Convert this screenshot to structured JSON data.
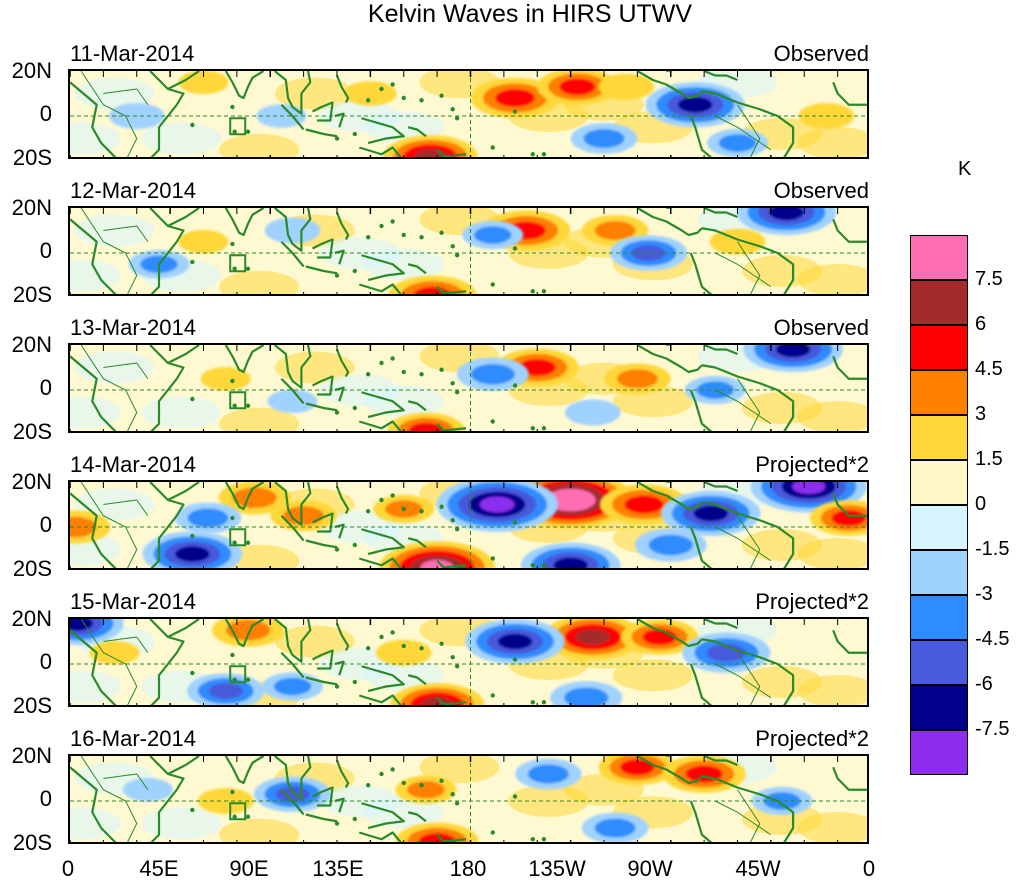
{
  "title": "Kelvin Waves in HIRS UTWV",
  "panels": [
    {
      "date": "11-Mar-2014",
      "type": "Observed"
    },
    {
      "date": "12-Mar-2014",
      "type": "Observed"
    },
    {
      "date": "13-Mar-2014",
      "type": "Observed"
    },
    {
      "date": "14-Mar-2014",
      "type": "Projected*2"
    },
    {
      "date": "15-Mar-2014",
      "type": "Projected*2"
    },
    {
      "date": "16-Mar-2014",
      "type": "Projected*2"
    }
  ],
  "lat_labels": [
    "20N",
    "0",
    "20S"
  ],
  "lon_labels": [
    "0",
    "45E",
    "90E",
    "135E",
    "180",
    "135W",
    "90W",
    "45W",
    "0"
  ],
  "colorbar": {
    "unit": "K",
    "labels": [
      "7.5",
      "6",
      "4.5",
      "3",
      "1.5",
      "0",
      "-1.5",
      "-3",
      "-4.5",
      "-6",
      "-7.5"
    ],
    "colors": [
      "#ff6eb4",
      "#a52a2a",
      "#ff0000",
      "#ff7f00",
      "#ffd739",
      "#fff9c8",
      "#d7f5ff",
      "#a0d2ff",
      "#2d8cff",
      "#465adc",
      "#00008b",
      "#8c2ded"
    ]
  },
  "colors": {
    "coast": "#2a8a2a",
    "zero_line": "#2a8a2a",
    "background": "#fff9d2"
  },
  "chart_data": {
    "type": "heatmap",
    "title": "Kelvin Waves in HIRS UTWV",
    "x_axis": {
      "range": [
        0,
        360
      ],
      "ticks": [
        "0",
        "45E",
        "90E",
        "135E",
        "180",
        "135W",
        "90W",
        "45W",
        "0"
      ]
    },
    "y_axis": {
      "range": [
        -20,
        20
      ],
      "ticks": [
        "20N",
        "0",
        "20S"
      ]
    },
    "levels": [
      -7.5,
      -6,
      -4.5,
      -3,
      -1.5,
      0,
      1.5,
      3,
      4.5,
      6,
      7.5
    ],
    "unit": "K",
    "anomalies": [
      [
        {
          "lon": 200,
          "lat": 8,
          "v": 5.5
        },
        {
          "lon": 228,
          "lat": 13,
          "v": 4.8
        },
        {
          "lon": 281,
          "lat": 5,
          "v": -6.5
        },
        {
          "lon": 250,
          "lat": 13,
          "v": 2.5
        },
        {
          "lon": 340,
          "lat": 0,
          "v": 2.5
        },
        {
          "lon": 135,
          "lat": 10,
          "v": 2.2
        },
        {
          "lon": 30,
          "lat": 0,
          "v": -2.5
        },
        {
          "lon": 162,
          "lat": -18,
          "v": 6.0
        },
        {
          "lon": 240,
          "lat": -10,
          "v": -3.5
        },
        {
          "lon": 300,
          "lat": -12,
          "v": -3.0
        },
        {
          "lon": 95,
          "lat": 0,
          "v": -2.0
        },
        {
          "lon": 60,
          "lat": 15,
          "v": 2.0
        }
      ],
      [
        {
          "lon": 205,
          "lat": 10,
          "v": 5.5
        },
        {
          "lon": 245,
          "lat": 10,
          "v": 3.5
        },
        {
          "lon": 190,
          "lat": 8,
          "v": -3.0
        },
        {
          "lon": 260,
          "lat": 0,
          "v": -4.5
        },
        {
          "lon": 322,
          "lat": 18,
          "v": -6.5
        },
        {
          "lon": 163,
          "lat": -19,
          "v": 5.5
        },
        {
          "lon": 100,
          "lat": 10,
          "v": -2.5
        },
        {
          "lon": 60,
          "lat": 5,
          "v": 2.0
        },
        {
          "lon": 40,
          "lat": -5,
          "v": -3.0
        },
        {
          "lon": 300,
          "lat": 5,
          "v": 2.5
        }
      ],
      [
        {
          "lon": 210,
          "lat": 10,
          "v": 5.0
        },
        {
          "lon": 255,
          "lat": 5,
          "v": 3.5
        },
        {
          "lon": 190,
          "lat": 7,
          "v": -4.0
        },
        {
          "lon": 325,
          "lat": 18,
          "v": -6.5
        },
        {
          "lon": 160,
          "lat": -18,
          "v": 4.5
        },
        {
          "lon": 235,
          "lat": -10,
          "v": -2.5
        },
        {
          "lon": 100,
          "lat": -5,
          "v": -2.0
        },
        {
          "lon": 70,
          "lat": 5,
          "v": 2.0
        },
        {
          "lon": 290,
          "lat": 0,
          "v": -3.0
        }
      ],
      [
        {
          "lon": 225,
          "lat": 12,
          "v": 9.0
        },
        {
          "lon": 192,
          "lat": 10,
          "v": -8.5
        },
        {
          "lon": 258,
          "lat": 10,
          "v": 5.5
        },
        {
          "lon": 288,
          "lat": 6,
          "v": -6.5
        },
        {
          "lon": 332,
          "lat": 18,
          "v": -8.0
        },
        {
          "lon": 350,
          "lat": 4,
          "v": 4.5
        },
        {
          "lon": 105,
          "lat": 5,
          "v": 3.5
        },
        {
          "lon": 83,
          "lat": 13,
          "v": 4.0
        },
        {
          "lon": 55,
          "lat": -12,
          "v": -6.5
        },
        {
          "lon": 62,
          "lat": 4,
          "v": -3.5
        },
        {
          "lon": 165,
          "lat": -18,
          "v": 8.0
        },
        {
          "lon": 225,
          "lat": -17,
          "v": -6.5
        },
        {
          "lon": 150,
          "lat": 8,
          "v": 3.0
        },
        {
          "lon": 270,
          "lat": -8,
          "v": -4.0
        },
        {
          "lon": 2,
          "lat": 0,
          "v": 4.0
        }
      ],
      [
        {
          "lon": 235,
          "lat": 12,
          "v": 6.5
        },
        {
          "lon": 200,
          "lat": 10,
          "v": -6.5
        },
        {
          "lon": 265,
          "lat": 12,
          "v": 4.5
        },
        {
          "lon": 295,
          "lat": 5,
          "v": -5.5
        },
        {
          "lon": 80,
          "lat": 15,
          "v": 4.0
        },
        {
          "lon": 100,
          "lat": -10,
          "v": -3.0
        },
        {
          "lon": 70,
          "lat": -12,
          "v": -4.5
        },
        {
          "lon": 165,
          "lat": -18,
          "v": 6.0
        },
        {
          "lon": 232,
          "lat": -15,
          "v": -4.0
        },
        {
          "lon": 20,
          "lat": 5,
          "v": 2.0
        },
        {
          "lon": 3,
          "lat": 18,
          "v": -6.0
        },
        {
          "lon": 150,
          "lat": 5,
          "v": 2.5
        }
      ],
      [
        {
          "lon": 255,
          "lat": 15,
          "v": 4.5
        },
        {
          "lon": 285,
          "lat": 12,
          "v": 5.0
        },
        {
          "lon": 215,
          "lat": 12,
          "v": -3.5
        },
        {
          "lon": 160,
          "lat": 5,
          "v": 3.0
        },
        {
          "lon": 100,
          "lat": 3,
          "v": -4.5
        },
        {
          "lon": 70,
          "lat": 0,
          "v": 2.5
        },
        {
          "lon": 165,
          "lat": -18,
          "v": 5.0
        },
        {
          "lon": 320,
          "lat": 0,
          "v": -3.0
        },
        {
          "lon": 245,
          "lat": -12,
          "v": -3.5
        },
        {
          "lon": 35,
          "lat": 5,
          "v": -2.0
        }
      ]
    ]
  }
}
